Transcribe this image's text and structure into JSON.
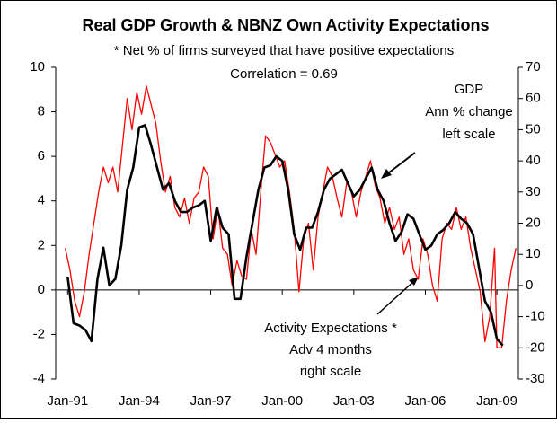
{
  "chart_data": {
    "type": "line",
    "title": "Real GDP Growth & NBNZ Own Activity Expectations",
    "subtitle": "* Net % of firms surveyed that have positive expectations",
    "annotations": [
      "Correlation = 0.69",
      "GDP",
      "Ann % change",
      "left scale",
      "Activity Expectations *",
      "Adv 4 months",
      "right scale"
    ],
    "xlim": [
      1990.5,
      2009.9
    ],
    "xticks": [
      {
        "value": 1991,
        "label": "Jan-91"
      },
      {
        "value": 1994,
        "label": "Jan-94"
      },
      {
        "value": 1997,
        "label": "Jan-97"
      },
      {
        "value": 2000,
        "label": "Jan-00"
      },
      {
        "value": 2003,
        "label": "Jan-03"
      },
      {
        "value": 2006,
        "label": "Jan-06"
      },
      {
        "value": 2009,
        "label": "Jan-09"
      }
    ],
    "ylim": [
      -4,
      10
    ],
    "yticks": [
      -4,
      -2,
      0,
      2,
      4,
      6,
      8,
      10
    ],
    "y2lim": [
      -30,
      70
    ],
    "y2ticks": [
      -30,
      -20,
      -10,
      0,
      10,
      20,
      30,
      40,
      50,
      60,
      70
    ],
    "series": [
      {
        "color": "#000000",
        "x": [
          1991.0,
          1991.25,
          1991.5,
          1991.75,
          1992.0,
          1992.25,
          1992.5,
          1992.75,
          1993.0,
          1993.25,
          1993.5,
          1993.75,
          1994.0,
          1994.25,
          1994.5,
          1994.75,
          1995.0,
          1995.25,
          1995.5,
          1995.75,
          1996.0,
          1996.25,
          1996.5,
          1996.75,
          1997.0,
          1997.25,
          1997.5,
          1997.75,
          1998.0,
          1998.25,
          1998.5,
          1998.75,
          1999.0,
          1999.25,
          1999.5,
          1999.75,
          2000.0,
          2000.25,
          2000.5,
          2000.75,
          2001.0,
          2001.25,
          2001.5,
          2001.75,
          2002.0,
          2002.25,
          2002.5,
          2002.75,
          2003.0,
          2003.25,
          2003.5,
          2003.75,
          2004.0,
          2004.25,
          2004.5,
          2004.75,
          2005.0,
          2005.25,
          2005.5,
          2005.75,
          2006.0,
          2006.25,
          2006.5,
          2006.75,
          2007.0,
          2007.25,
          2007.5,
          2007.75,
          2008.0,
          2008.25,
          2008.5,
          2008.75,
          2009.0,
          2009.25
        ],
        "values": [
          0.6,
          -1.5,
          -1.6,
          -1.8,
          -2.3,
          0.5,
          1.9,
          0.2,
          0.5,
          2.0,
          4.5,
          5.5,
          7.3,
          7.4,
          6.5,
          5.5,
          4.5,
          4.8,
          4.0,
          3.5,
          3.5,
          3.7,
          3.8,
          4.0,
          2.2,
          3.7,
          2.8,
          2.5,
          -0.4,
          -0.4,
          1.5,
          3.0,
          4.5,
          5.5,
          5.6,
          6.0,
          5.8,
          4.5,
          2.5,
          1.8,
          2.8,
          2.8,
          3.5,
          4.5,
          5.0,
          5.2,
          5.4,
          4.8,
          4.2,
          4.5,
          5.0,
          5.5,
          4.5,
          4.0,
          3.0,
          2.2,
          2.6,
          3.4,
          3.2,
          2.5,
          1.8,
          2.0,
          2.5,
          2.7,
          3.0,
          3.5,
          3.2,
          3.0,
          2.5,
          1.0,
          -0.5,
          -1.0,
          -2.2,
          -2.5
        ]
      },
      {
        "color": "#ff0000",
        "axis": "y2",
        "x": [
          1990.9,
          1991.1,
          1991.3,
          1991.5,
          1991.7,
          1991.9,
          1992.1,
          1992.3,
          1992.5,
          1992.7,
          1992.9,
          1993.1,
          1993.3,
          1993.5,
          1993.7,
          1993.9,
          1994.1,
          1994.3,
          1994.5,
          1994.7,
          1994.9,
          1995.1,
          1995.3,
          1995.5,
          1995.7,
          1995.9,
          1996.1,
          1996.3,
          1996.5,
          1996.7,
          1996.9,
          1997.1,
          1997.3,
          1997.5,
          1997.7,
          1997.9,
          1998.1,
          1998.3,
          1998.5,
          1998.7,
          1998.9,
          1999.1,
          1999.3,
          1999.5,
          1999.7,
          1999.9,
          2000.1,
          2000.3,
          2000.5,
          2000.7,
          2000.9,
          2001.1,
          2001.3,
          2001.5,
          2001.7,
          2001.9,
          2002.1,
          2002.3,
          2002.5,
          2002.7,
          2002.9,
          2003.1,
          2003.3,
          2003.5,
          2003.7,
          2003.9,
          2004.1,
          2004.3,
          2004.5,
          2004.7,
          2004.9,
          2005.1,
          2005.3,
          2005.5,
          2005.7,
          2005.9,
          2006.1,
          2006.3,
          2006.5,
          2006.7,
          2006.9,
          2007.1,
          2007.3,
          2007.5,
          2007.7,
          2007.9,
          2008.1,
          2008.3,
          2008.5,
          2008.7,
          2008.9,
          2009.0,
          2009.2,
          2009.4,
          2009.6,
          2009.8
        ],
        "values": [
          12,
          5,
          -5,
          -10,
          -2,
          10,
          20,
          30,
          38,
          33,
          38,
          30,
          45,
          60,
          50,
          62,
          55,
          64,
          58,
          52,
          40,
          30,
          35,
          25,
          22,
          28,
          20,
          28,
          30,
          38,
          35,
          15,
          25,
          12,
          10,
          0,
          8,
          3,
          2,
          18,
          10,
          30,
          48,
          46,
          42,
          38,
          40,
          30,
          18,
          -2,
          15,
          20,
          5,
          22,
          30,
          38,
          35,
          28,
          22,
          33,
          30,
          22,
          30,
          35,
          40,
          32,
          28,
          20,
          25,
          18,
          22,
          10,
          15,
          5,
          2,
          15,
          10,
          0,
          -5,
          15,
          20,
          18,
          25,
          18,
          22,
          12,
          5,
          -2,
          -18,
          -10,
          12,
          -20,
          -20,
          -5,
          5,
          12
        ]
      }
    ]
  }
}
